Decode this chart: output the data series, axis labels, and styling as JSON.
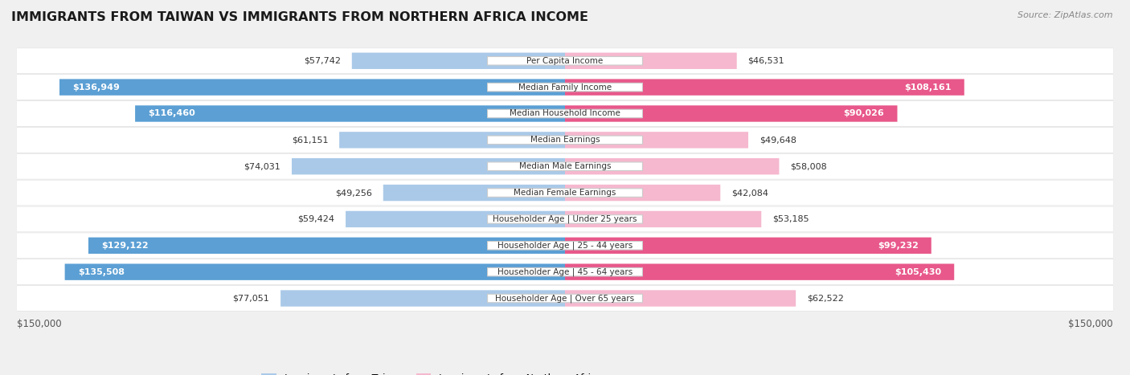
{
  "title": "IMMIGRANTS FROM TAIWAN VS IMMIGRANTS FROM NORTHERN AFRICA INCOME",
  "source": "Source: ZipAtlas.com",
  "categories": [
    "Per Capita Income",
    "Median Family Income",
    "Median Household Income",
    "Median Earnings",
    "Median Male Earnings",
    "Median Female Earnings",
    "Householder Age | Under 25 years",
    "Householder Age | 25 - 44 years",
    "Householder Age | 45 - 64 years",
    "Householder Age | Over 65 years"
  ],
  "taiwan_values": [
    57742,
    136949,
    116460,
    61151,
    74031,
    49256,
    59424,
    129122,
    135508,
    77051
  ],
  "n_africa_values": [
    46531,
    108161,
    90026,
    49648,
    58008,
    42084,
    53185,
    99232,
    105430,
    62522
  ],
  "taiwan_labels": [
    "$57,742",
    "$136,949",
    "$116,460",
    "$61,151",
    "$74,031",
    "$49,256",
    "$59,424",
    "$129,122",
    "$135,508",
    "$77,051"
  ],
  "n_africa_labels": [
    "$46,531",
    "$108,161",
    "$90,026",
    "$49,648",
    "$58,008",
    "$42,084",
    "$53,185",
    "$99,232",
    "$105,430",
    "$62,522"
  ],
  "tw_color_light": "#aac9e8",
  "tw_color_dark": "#5b9fd4",
  "na_color_light": "#f5b8ce",
  "na_color_dark": "#e8588a",
  "threshold": 90000,
  "max_value": 150000,
  "bg_color": "#f0f0f0",
  "row_bg": "#ffffff",
  "row_bg_alt": "#f8f8f8",
  "legend_taiwan": "Immigrants from Taiwan",
  "legend_n_africa": "Immigrants from Northern Africa",
  "label_fontsize": 8.0,
  "cat_fontsize": 7.5
}
